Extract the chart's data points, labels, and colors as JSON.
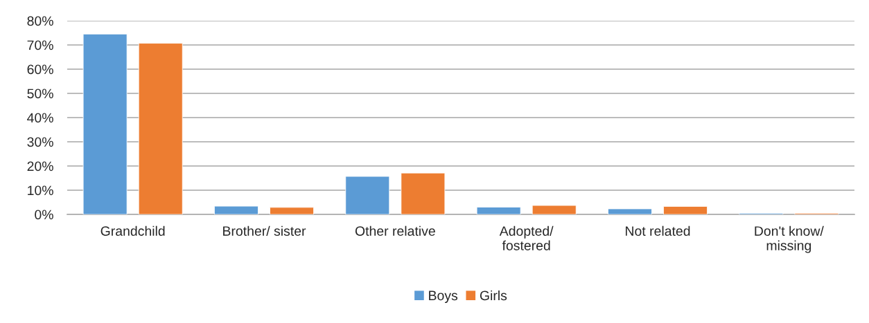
{
  "chart_data": {
    "type": "bar",
    "categories": [
      "Grandchild",
      "Brother/ sister",
      "Other relative",
      "Adopted/\nfostered",
      "Not related",
      "Don't know/\nmissing"
    ],
    "series": [
      {
        "name": "Boys",
        "color": "#5b9bd5",
        "values": [
          74.5,
          3.4,
          15.7,
          3.0,
          2.3,
          0.5
        ]
      },
      {
        "name": "Girls",
        "color": "#ed7d31",
        "values": [
          70.7,
          2.9,
          17.1,
          3.7,
          3.3,
          0.5
        ]
      }
    ],
    "ylim": [
      0,
      80
    ],
    "yticks": [
      {
        "value": 0,
        "label": "0%"
      },
      {
        "value": 10,
        "label": "10%"
      },
      {
        "value": 20,
        "label": "20%"
      },
      {
        "value": 30,
        "label": "30%"
      },
      {
        "value": 40,
        "label": "40%"
      },
      {
        "value": 50,
        "label": "50%"
      },
      {
        "value": 60,
        "label": "60%"
      },
      {
        "value": 70,
        "label": "70%"
      },
      {
        "value": 80,
        "label": "80%"
      }
    ],
    "grid": "y",
    "legend": "bottom"
  }
}
